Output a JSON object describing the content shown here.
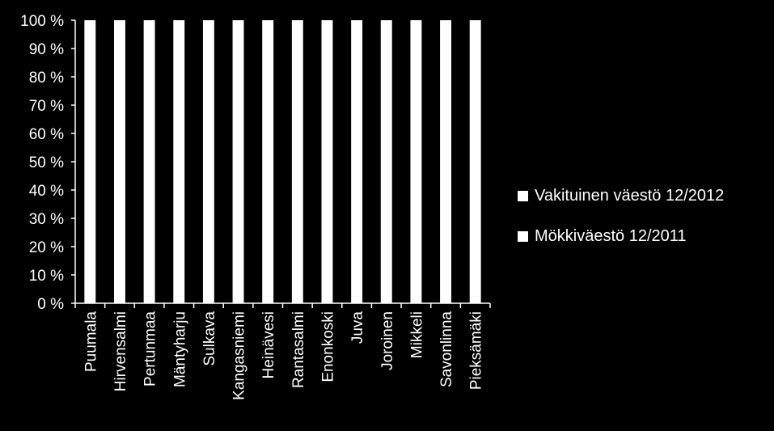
{
  "chart_data": {
    "type": "bar",
    "stacked": true,
    "percent_stacked": true,
    "categories": [
      "Puumala",
      "Hirvensalmi",
      "Pertunmaa",
      "Mäntyharju",
      "Sulkava",
      "Kangasniemi",
      "Heinävesi",
      "Rantasalmi",
      "Enonkoski",
      "Juva",
      "Joroinen",
      "Mikkeli",
      "Savonlinna",
      "Pieksämäki"
    ],
    "series": [
      {
        "name": "Vakituinen väestö 12/2012",
        "color": "#ffffff",
        "values": [
          100,
          100,
          100,
          100,
          100,
          100,
          100,
          100,
          100,
          100,
          100,
          100,
          100,
          100
        ]
      },
      {
        "name": "Mökkiväestö 12/2011",
        "color": "#ffffff",
        "values": [
          0,
          0,
          0,
          0,
          0,
          0,
          0,
          0,
          0,
          0,
          0,
          0,
          0,
          0
        ]
      }
    ],
    "y_ticks": [
      "0 %",
      "10 %",
      "20 %",
      "30 %",
      "40 %",
      "50 %",
      "60 %",
      "70 %",
      "80 %",
      "90 %",
      "100 %"
    ],
    "ylim": [
      0,
      100
    ],
    "grid": false,
    "legend_position": "right",
    "background": "#000000",
    "axis_color": "#ffffff"
  }
}
